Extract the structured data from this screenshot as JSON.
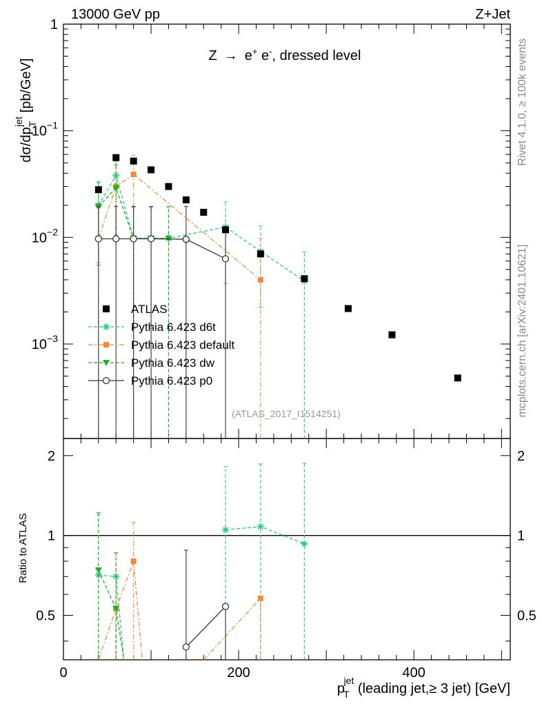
{
  "header": {
    "left": "13000 GeV pp",
    "right": "Z+Jet"
  },
  "side_labels": {
    "rivet": "Rivet 4.1.0, ≥ 100k events",
    "mcplots": "mcplots.cern.ch [arXiv:2401.10621]"
  },
  "chart_data": {
    "type": "scatter",
    "title": "Z → e⁺ e⁻, dressed level",
    "title_parts": {
      "pre": "Z",
      "arrow": "→",
      "e1": "e",
      "sup1": "+",
      "e2": " e",
      "sup2": "-",
      "post": ", dressed level"
    },
    "analysis_tag": "(ATLAS_2017_I1514251)",
    "xlabel": {
      "main": "p",
      "sub": "T",
      "sup": "jet",
      "rest": " (leading jet,≥ 3 jet) [GeV]"
    },
    "ylabel_top": {
      "main": "dσ/dp",
      "sub": "T",
      "sup": "jet",
      "rest": " [pb/GeV]"
    },
    "ylabel_ratio": "Ratio to ATLAS",
    "xlim": [
      0,
      510
    ],
    "ylim_top": [
      0.00013,
      1
    ],
    "ylim_ratio": [
      0.34,
      2.32
    ],
    "x_ticks": [
      0,
      200,
      400
    ],
    "x_tick_labels": [
      "0",
      "200",
      "400"
    ],
    "y_ticks_top": [
      0.001,
      0.01,
      0.1,
      1
    ],
    "y_tick_labels_top": [
      {
        "base": "10",
        "exp": "−3"
      },
      {
        "base": "10",
        "exp": "−2"
      },
      {
        "base": "10",
        "exp": "−1"
      },
      {
        "base": "1",
        "exp": ""
      }
    ],
    "y_ticks_ratio": [
      0.5,
      1,
      2
    ],
    "y_tick_labels_ratio": [
      "0.5",
      "1",
      "2"
    ],
    "series": [
      {
        "name": "ATLAS",
        "color": "#000000",
        "marker": "square",
        "style": "none",
        "x": [
          40,
          60,
          80,
          100,
          120,
          140,
          160,
          185,
          225,
          275,
          325,
          375,
          450
        ],
        "y": [
          0.028,
          0.056,
          0.052,
          0.043,
          0.03,
          0.0225,
          0.0172,
          0.0118,
          0.007,
          0.0041,
          0.00215,
          0.00122,
          0.00048
        ]
      },
      {
        "name": "Pythia 6.423 d6t",
        "color": "#1fd08c",
        "marker": "star",
        "style": "dash",
        "x": [
          40,
          60,
          80,
          100,
          120,
          185,
          225,
          275
        ],
        "y": [
          0.02,
          0.038,
          0.0098,
          0.0098,
          0.0098,
          0.0125,
          0.0074,
          0.0039
        ],
        "err_top": [
          [
            0.0058,
            0.0335
          ],
          [
            0.0092,
            0.059
          ],
          [
            0.0014,
            0.019
          ],
          [
            0.0014,
            0.019
          ],
          [
            0.0014,
            0.019
          ],
          [
            0.0037,
            0.0215
          ],
          [
            0.0022,
            0.0128
          ],
          [
            0.00013,
            0.0073
          ]
        ],
        "ratio": [
          0.71,
          0.7,
          null,
          null,
          null,
          1.05,
          1.08,
          0.93
        ],
        "err_ratio": [
          [
            0.34,
            1.2
          ],
          [
            0.34,
            0.86
          ],
          null,
          null,
          null,
          [
            0.34,
            1.82
          ],
          [
            0.34,
            1.86
          ],
          [
            0.34,
            1.87
          ]
        ]
      },
      {
        "name": "Pythia 6.423 default",
        "color": "#f58a35",
        "marker": "filled_square",
        "style": "dashdot",
        "x": [
          40,
          60,
          80,
          225
        ],
        "y": [
          0.0098,
          0.03,
          0.039,
          0.004
        ],
        "err_top": [
          [
            0.00013,
            0.019
          ],
          [
            0.0092,
            0.052
          ],
          [
            0.019,
            0.059
          ],
          [
            0.00013,
            0.0098
          ]
        ],
        "ratio": [
          null,
          0.53,
          0.8,
          0.58
        ],
        "ratio_line": [
          [
            40,
            0.34
          ],
          [
            60,
            0.53
          ],
          [
            80,
            0.8
          ],
          [
            90,
            0.34
          ],
          [
            null,
            null
          ],
          [
            160,
            0.34
          ],
          [
            225,
            0.58
          ]
        ],
        "err_ratio": [
          null,
          [
            0.34,
            0.86
          ],
          [
            0.34,
            1.12
          ],
          [
            0.34,
            0.58
          ]
        ]
      },
      {
        "name": "Pythia 6.423 dw",
        "color": "#1ab51a",
        "marker": "triangle_down",
        "style": "dash",
        "x": [
          40,
          60,
          80,
          100,
          120
        ],
        "y": [
          0.0195,
          0.029,
          0.0098,
          0.0098,
          0.0098
        ],
        "err_top": [
          [
            0.0055,
            0.0325
          ],
          [
            0.0105,
            0.048
          ],
          [
            0.00013,
            0.0195
          ],
          [
            0.00013,
            0.0195
          ],
          [
            0.00013,
            0.0195
          ]
        ],
        "ratio": [
          0.74,
          0.53,
          null,
          null,
          null
        ],
        "err_ratio": [
          [
            0.34,
            1.22
          ],
          [
            0.34,
            0.86
          ],
          null,
          null,
          null
        ]
      },
      {
        "name": "Pythia 6.423 p0",
        "color": "#333333",
        "marker": "open_circle",
        "style": "solid",
        "x": [
          40,
          60,
          80,
          100,
          140,
          185
        ],
        "y": [
          0.0097,
          0.0097,
          0.0097,
          0.0097,
          0.0096,
          0.0063
        ],
        "err_top": [
          [
            0.00013,
            0.0195
          ],
          [
            0.00013,
            0.0195
          ],
          [
            0.00013,
            0.0195
          ],
          [
            0.00013,
            0.0195
          ],
          [
            0.00013,
            0.0195
          ],
          [
            0.00013,
            0.0125
          ]
        ],
        "ratio": [
          null,
          null,
          null,
          null,
          0.38,
          0.54
        ],
        "err_ratio": [
          null,
          null,
          null,
          null,
          [
            0.34,
            0.88
          ],
          [
            0.34,
            0.54
          ]
        ]
      }
    ]
  }
}
